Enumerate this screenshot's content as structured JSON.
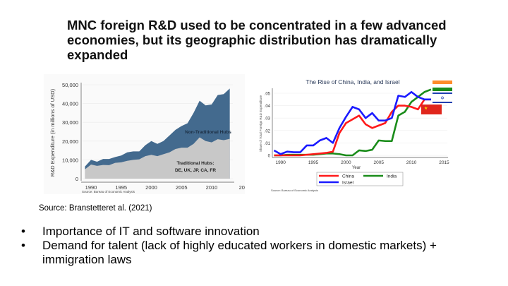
{
  "slide": {
    "title": "MNC foreign R&D used to be concentrated in a few advanced economies, but its geographic distribution has dramatically expanded",
    "source": "Source: Branstetteret al. (2021)",
    "bullets": [
      "Importance of IT and software innovation",
      "Demand for talent (lack of highly educated workers in domestic markets) + immigration laws"
    ]
  },
  "chart_data": [
    {
      "type": "area",
      "title": "",
      "ylabel": "R&D Expenditure (in millions of USD)",
      "xlabel": "",
      "source": "Source: Bureau of Economic Analysis",
      "x": [
        1989,
        1990,
        1991,
        1992,
        1993,
        1994,
        1995,
        1996,
        1997,
        1998,
        1999,
        2000,
        2001,
        2002,
        2003,
        2004,
        2005,
        2006,
        2007,
        2008,
        2009,
        2010,
        2011,
        2012,
        2013
      ],
      "xticks": [
        "1990",
        "1995",
        "2000",
        "2005",
        "2010",
        "20"
      ],
      "yticks": [
        "0",
        "10,000",
        "20,000",
        "30,000",
        "40,000",
        "50,000"
      ],
      "ylim": [
        0,
        50000
      ],
      "stacked": true,
      "series": [
        {
          "name": "Traditional Hubs: DE, UK, JP, CA, FR",
          "color": "#c8c8c8",
          "values": [
            5000,
            7500,
            6800,
            7300,
            7200,
            8400,
            8700,
            9500,
            10000,
            10300,
            12000,
            12700,
            12000,
            13000,
            14000,
            15800,
            16500,
            16500,
            18500,
            22000,
            20000,
            19300,
            21000,
            20500,
            21200
          ]
        },
        {
          "name": "Non-Traditional Hubs",
          "color": "#436a8e",
          "total_values": [
            6500,
            10000,
            9000,
            10500,
            10500,
            11500,
            12300,
            14000,
            14500,
            14500,
            17800,
            20000,
            18500,
            20000,
            23000,
            26000,
            28000,
            29500,
            35000,
            41500,
            39000,
            39500,
            44500,
            45000,
            48000
          ]
        }
      ],
      "labels": {
        "non_traditional": "Non-Traditional Hubs",
        "traditional_1": "Traditional Hubs:",
        "traditional_2": "DE, UK, JP, CA, FR"
      }
    },
    {
      "type": "line",
      "title": "The Rise of China, India, and Israel",
      "xlabel": "Year",
      "ylabel": "Share of Total Foreign R&D Expenditure",
      "source": "Source: Bureau of Economic Analysis",
      "x": [
        1989,
        1990,
        1991,
        1992,
        1993,
        1994,
        1995,
        1996,
        1997,
        1998,
        1999,
        2000,
        2001,
        2002,
        2003,
        2004,
        2005,
        2006,
        2007,
        2008,
        2009,
        2010,
        2011,
        2012,
        2013
      ],
      "xlim": [
        1989,
        2015
      ],
      "xticks": [
        "1990",
        "1995",
        "2000",
        "2005",
        "2010",
        "2015"
      ],
      "yticks": [
        "0",
        ".01",
        ".02",
        ".03",
        ".04",
        ".05"
      ],
      "ylim": [
        0,
        0.05
      ],
      "legend": "bottom",
      "series": [
        {
          "name": "China",
          "color": "#ff1a1a",
          "values": [
            0,
            0,
            0,
            0,
            0,
            0.0005,
            0.001,
            0.0015,
            0.002,
            0.003,
            0.018,
            0.026,
            0.029,
            0.032,
            0.025,
            0.022,
            0.024,
            0.026,
            0.035,
            0.04,
            0.04,
            0.039,
            0.037,
            0.045,
            0.045
          ]
        },
        {
          "name": "India",
          "color": "#1a8c1a",
          "values": [
            0,
            0,
            0.0005,
            0.0005,
            0.0005,
            0.0005,
            0.0005,
            0.001,
            0.0015,
            0.0015,
            0.001,
            0,
            0,
            0.004,
            0.0035,
            0.0045,
            0.012,
            0.0115,
            0.0115,
            0.032,
            0.035,
            0.043,
            0.047,
            0.051,
            0.053
          ]
        },
        {
          "name": "Israel",
          "color": "#1a1aff",
          "values": [
            0.004,
            0.001,
            0.003,
            0.0025,
            0.0025,
            0.008,
            0.008,
            0.012,
            0.014,
            0.01,
            0.022,
            0.031,
            0.039,
            0.037,
            0.03,
            0.034,
            0.028,
            0.028,
            0.03,
            0.048,
            0.047,
            0.051,
            0.047,
            0.045,
            0.045
          ]
        }
      ],
      "flags": [
        "india-flag",
        "israel-flag",
        "china-flag"
      ]
    }
  ]
}
